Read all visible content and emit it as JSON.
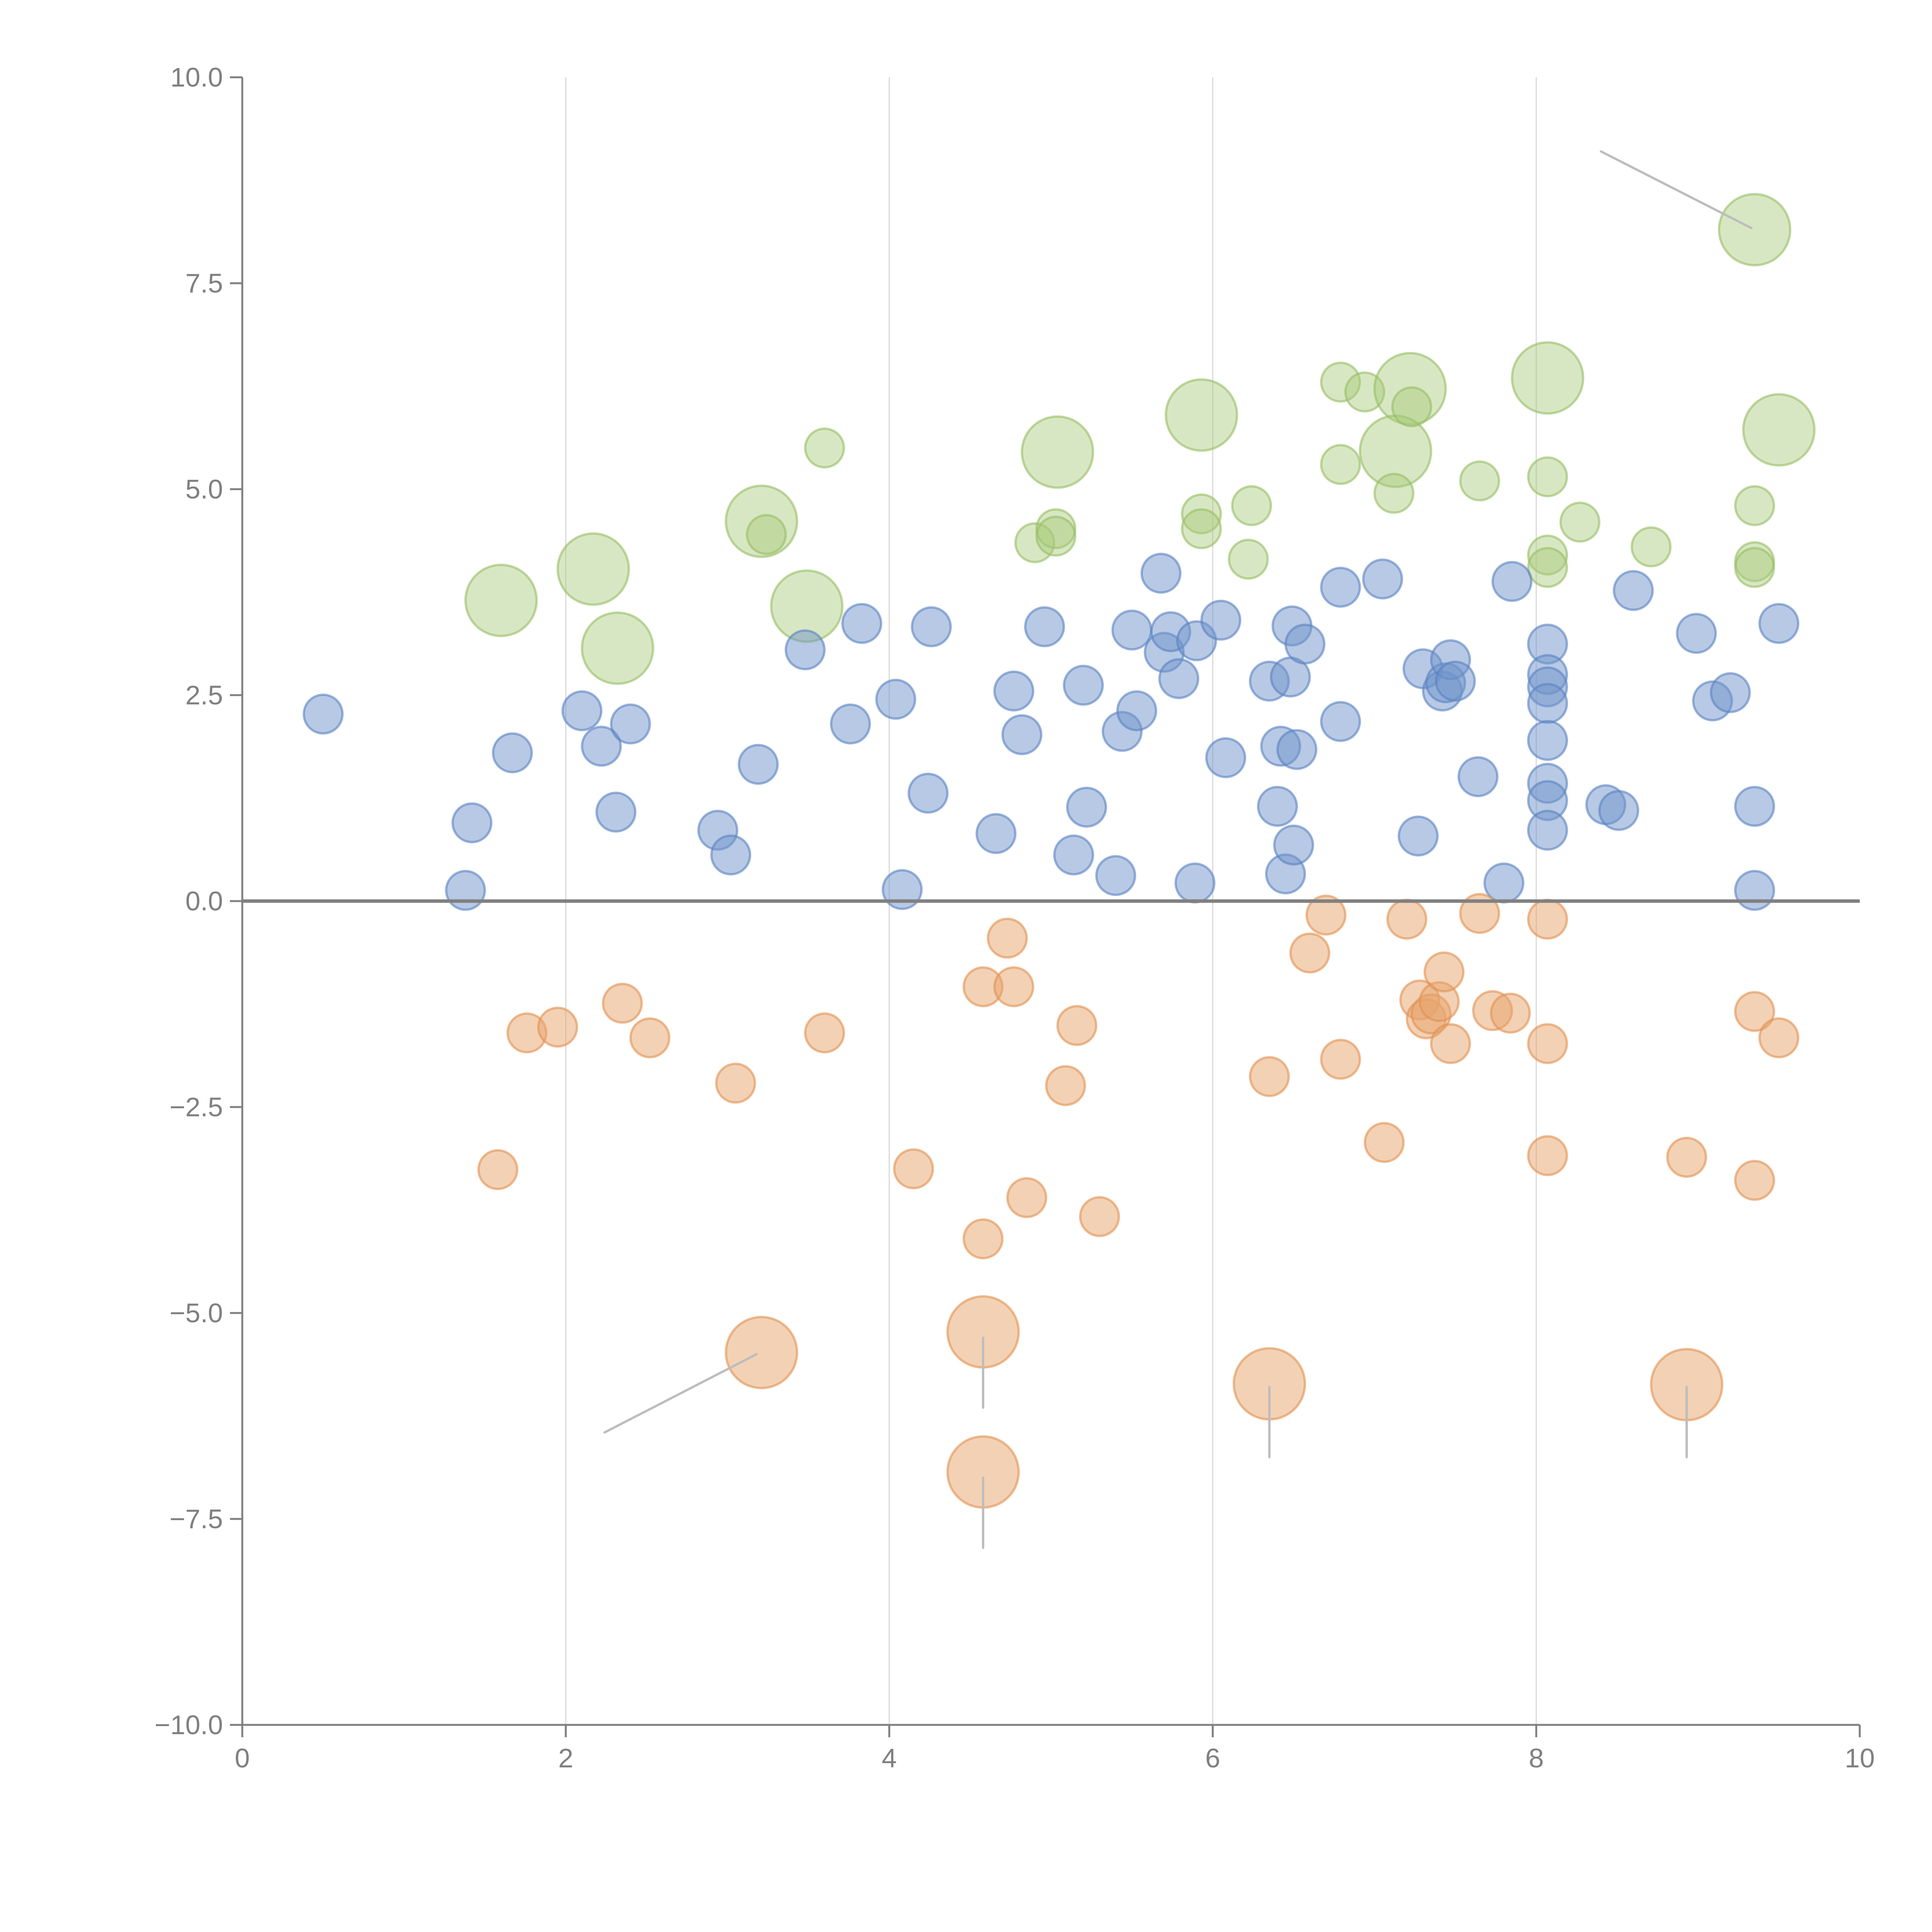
{
  "chart_data": {
    "type": "scatter",
    "title": "",
    "xlabel": "",
    "ylabel": "",
    "xlim": [
      0,
      10
    ],
    "ylim": [
      -10,
      10
    ],
    "grid": "vertical",
    "legend": "none",
    "x_ticks": [
      "0",
      "2",
      "4",
      "6",
      "8",
      "10"
    ],
    "y_ticks": [
      "10.0",
      "7.5",
      "5.0",
      "2.5",
      "0.0",
      "−2.5",
      "−5.0",
      "−7.5",
      "−10.0"
    ],
    "x_tick_values": [
      0,
      2,
      4,
      6,
      8,
      10
    ],
    "y_tick_values": [
      10,
      7.5,
      5,
      2.5,
      0,
      -2.5,
      -5,
      -7.5,
      -10
    ],
    "colors": {
      "green": "#a9c97a",
      "blue": "#6f93c9",
      "orange": "#e8a36b"
    },
    "series": [
      {
        "name": "green",
        "points": [
          [
            1.6,
            3.65,
            3
          ],
          [
            2.17,
            4.03,
            3
          ],
          [
            2.32,
            3.07,
            3
          ],
          [
            3.21,
            4.61,
            3
          ],
          [
            3.49,
            3.58,
            3
          ],
          [
            3.6,
            5.5,
            1
          ],
          [
            3.24,
            4.45,
            1
          ],
          [
            5.04,
            5.45,
            3
          ],
          [
            4.9,
            4.35,
            1
          ],
          [
            5.03,
            4.52,
            1
          ],
          [
            5.03,
            4.43,
            1
          ],
          [
            5.93,
            5.9,
            3
          ],
          [
            5.93,
            4.7,
            1
          ],
          [
            5.93,
            4.52,
            1
          ],
          [
            6.24,
            4.8,
            1
          ],
          [
            6.22,
            4.15,
            1
          ],
          [
            6.79,
            6.3,
            1
          ],
          [
            6.79,
            5.3,
            1
          ],
          [
            6.94,
            6.18,
            1
          ],
          [
            7.22,
            6.22,
            3
          ],
          [
            7.13,
            5.46,
            3
          ],
          [
            7.12,
            4.95,
            1
          ],
          [
            7.23,
            6.0,
            1
          ],
          [
            7.65,
            5.1,
            1
          ],
          [
            8.07,
            6.35,
            3
          ],
          [
            8.07,
            5.15,
            1
          ],
          [
            8.07,
            4.2,
            1
          ],
          [
            8.07,
            4.05,
            1
          ],
          [
            8.27,
            4.6,
            1
          ],
          [
            8.71,
            4.3,
            1
          ],
          [
            9.35,
            8.15,
            3
          ],
          [
            9.5,
            5.72,
            3
          ],
          [
            9.35,
            4.8,
            1
          ],
          [
            9.35,
            4.12,
            1
          ],
          [
            9.35,
            4.05,
            1
          ]
        ]
      },
      {
        "name": "blue",
        "points": [
          [
            0.5,
            2.27,
            1
          ],
          [
            1.38,
            0.13,
            1
          ],
          [
            1.42,
            0.95,
            1
          ],
          [
            1.67,
            1.8,
            1
          ],
          [
            2.1,
            2.31,
            1
          ],
          [
            2.22,
            1.88,
            1
          ],
          [
            2.31,
            1.08,
            1
          ],
          [
            2.4,
            2.15,
            1
          ],
          [
            2.94,
            0.86,
            1
          ],
          [
            3.02,
            0.56,
            1
          ],
          [
            3.19,
            1.66,
            1
          ],
          [
            3.48,
            3.05,
            1
          ],
          [
            3.76,
            2.15,
            1
          ],
          [
            3.83,
            3.37,
            1
          ],
          [
            4.04,
            2.45,
            1
          ],
          [
            4.08,
            0.14,
            1
          ],
          [
            4.24,
            1.31,
            1
          ],
          [
            4.26,
            3.33,
            1
          ],
          [
            4.66,
            0.82,
            1
          ],
          [
            4.77,
            2.55,
            1
          ],
          [
            4.82,
            2.02,
            1
          ],
          [
            4.96,
            3.33,
            1
          ],
          [
            5.14,
            0.56,
            1
          ],
          [
            5.2,
            2.62,
            1
          ],
          [
            5.22,
            1.14,
            1
          ],
          [
            5.4,
            0.31,
            1
          ],
          [
            5.44,
            2.06,
            1
          ],
          [
            5.5,
            3.29,
            1
          ],
          [
            5.53,
            2.31,
            1
          ],
          [
            5.68,
            3.98,
            1
          ],
          [
            5.7,
            3.02,
            1
          ],
          [
            5.74,
            3.27,
            1
          ],
          [
            5.79,
            2.7,
            1
          ],
          [
            5.89,
            0.22,
            1
          ],
          [
            5.9,
            3.16,
            1
          ],
          [
            6.05,
            3.41,
            1
          ],
          [
            6.08,
            1.74,
            1
          ],
          [
            6.35,
            2.67,
            1
          ],
          [
            6.4,
            1.15,
            1
          ],
          [
            6.42,
            1.88,
            1
          ],
          [
            6.45,
            0.33,
            1
          ],
          [
            6.48,
            2.72,
            1
          ],
          [
            6.49,
            3.34,
            1
          ],
          [
            6.5,
            0.68,
            1
          ],
          [
            6.52,
            1.84,
            1
          ],
          [
            6.57,
            3.12,
            1
          ],
          [
            6.79,
            3.81,
            1
          ],
          [
            6.79,
            2.18,
            1
          ],
          [
            7.05,
            3.91,
            1
          ],
          [
            7.27,
            0.79,
            1
          ],
          [
            7.3,
            2.82,
            1
          ],
          [
            7.42,
            2.55,
            1
          ],
          [
            7.44,
            2.65,
            1
          ],
          [
            7.47,
            2.93,
            1
          ],
          [
            7.5,
            2.67,
            1
          ],
          [
            7.64,
            1.51,
            1
          ],
          [
            7.8,
            0.22,
            1
          ],
          [
            7.85,
            3.88,
            1
          ],
          [
            8.07,
            3.12,
            1
          ],
          [
            8.07,
            2.75,
            1
          ],
          [
            8.07,
            2.6,
            1
          ],
          [
            8.07,
            2.4,
            1
          ],
          [
            8.07,
            1.95,
            1
          ],
          [
            8.07,
            1.43,
            1
          ],
          [
            8.07,
            1.22,
            1
          ],
          [
            8.07,
            0.86,
            1
          ],
          [
            8.43,
            1.17,
            1
          ],
          [
            8.51,
            1.1,
            1
          ],
          [
            8.6,
            3.77,
            1
          ],
          [
            8.99,
            3.25,
            1
          ],
          [
            9.09,
            2.43,
            1
          ],
          [
            9.2,
            2.53,
            1
          ],
          [
            9.35,
            1.15,
            1
          ],
          [
            9.35,
            0.13,
            1
          ],
          [
            9.5,
            3.37,
            1
          ]
        ]
      },
      {
        "name": "orange",
        "points": [
          [
            1.58,
            -3.26,
            1
          ],
          [
            1.76,
            -1.6,
            1
          ],
          [
            1.95,
            -1.53,
            1
          ],
          [
            2.35,
            -1.24,
            1
          ],
          [
            2.52,
            -1.66,
            1
          ],
          [
            3.05,
            -2.21,
            1
          ],
          [
            3.21,
            -5.48,
            3
          ],
          [
            3.6,
            -1.6,
            1
          ],
          [
            4.15,
            -3.25,
            1
          ],
          [
            4.58,
            -5.23,
            3
          ],
          [
            4.58,
            -6.93,
            3
          ],
          [
            4.58,
            -4.1,
            1
          ],
          [
            4.58,
            -1.04,
            1
          ],
          [
            4.73,
            -0.45,
            1
          ],
          [
            4.77,
            -1.04,
            1
          ],
          [
            4.85,
            -3.6,
            1
          ],
          [
            5.09,
            -2.24,
            1
          ],
          [
            5.16,
            -1.51,
            1
          ],
          [
            5.3,
            -3.83,
            1
          ],
          [
            6.35,
            -2.13,
            1
          ],
          [
            6.35,
            -5.86,
            3
          ],
          [
            6.6,
            -0.63,
            1
          ],
          [
            6.7,
            -0.17,
            1
          ],
          [
            6.79,
            -1.92,
            1
          ],
          [
            7.06,
            -2.93,
            1
          ],
          [
            7.2,
            -0.22,
            1
          ],
          [
            7.28,
            -1.2,
            1
          ],
          [
            7.32,
            -1.43,
            1
          ],
          [
            7.35,
            -1.37,
            1
          ],
          [
            7.4,
            -1.22,
            1
          ],
          [
            7.43,
            -0.86,
            1
          ],
          [
            7.47,
            -1.73,
            1
          ],
          [
            7.65,
            -0.15,
            1
          ],
          [
            7.73,
            -1.33,
            1
          ],
          [
            7.84,
            -1.36,
            1
          ],
          [
            8.07,
            -0.22,
            1
          ],
          [
            8.07,
            -1.73,
            1
          ],
          [
            8.07,
            -3.09,
            1
          ],
          [
            8.93,
            -5.87,
            3
          ],
          [
            8.93,
            -3.11,
            1
          ],
          [
            9.35,
            -1.34,
            1
          ],
          [
            9.35,
            -3.39,
            1
          ],
          [
            9.5,
            -1.66,
            1
          ]
        ]
      }
    ],
    "size_note": "third value in each point is a relative bubble size (1 = small, 3 = large)",
    "annotations": [
      {
        "from": [
          8.4,
          9.1
        ],
        "to": [
          9.33,
          8.17
        ]
      },
      {
        "from": [
          2.24,
          -6.45
        ],
        "to": [
          3.18,
          -5.5
        ]
      },
      {
        "from": [
          4.58,
          -5.3
        ],
        "to": [
          4.58,
          -6.15
        ]
      },
      {
        "from": [
          4.58,
          -7.0
        ],
        "to": [
          4.58,
          -7.85
        ]
      },
      {
        "from": [
          6.35,
          -5.9
        ],
        "to": [
          6.35,
          -6.75
        ]
      },
      {
        "from": [
          8.93,
          -5.9
        ],
        "to": [
          8.93,
          -6.75
        ]
      }
    ]
  }
}
